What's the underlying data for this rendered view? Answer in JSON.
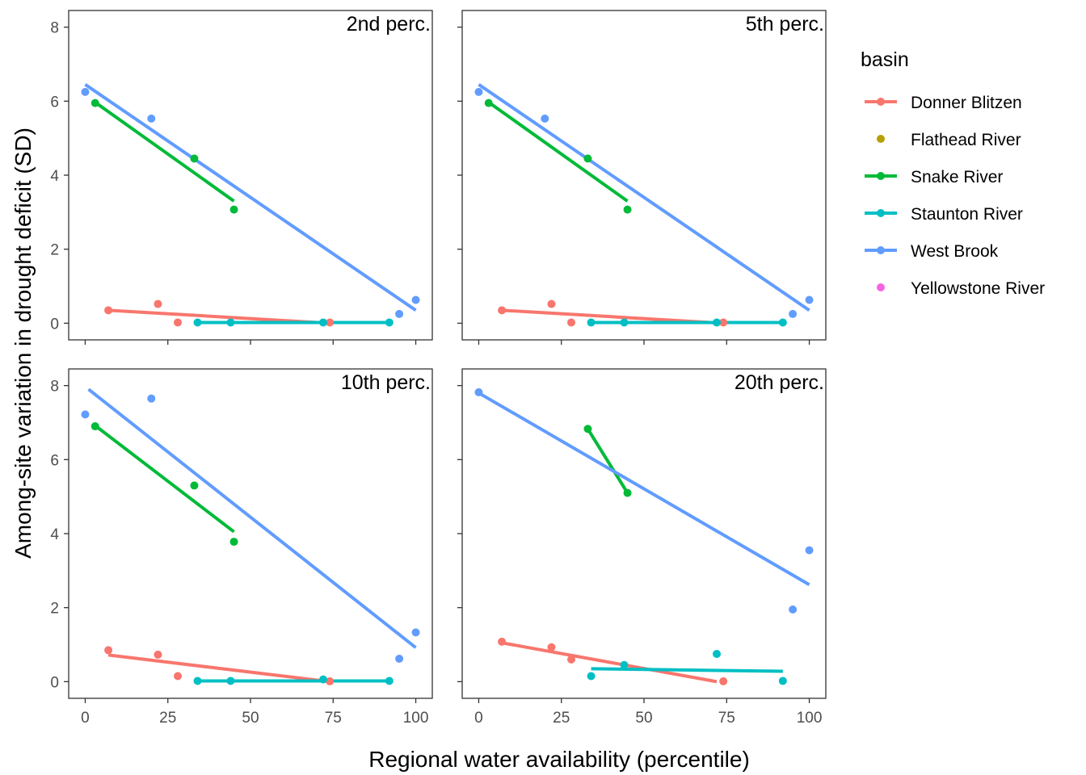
{
  "chart_data": {
    "type": "scatter",
    "xlabel": "Regional water availability (percentile)",
    "ylabel": "Among-site variation in drought deficit (SD)",
    "xlim": [
      -5,
      105
    ],
    "ylim": [
      -0.45,
      8.45
    ],
    "x_ticks": [
      0,
      25,
      50,
      75,
      100
    ],
    "y_ticks": [
      0,
      2,
      4,
      6,
      8
    ],
    "grid": false,
    "legend": {
      "title": "basin",
      "position": "right",
      "entries": [
        {
          "name": "Donner Blitzen",
          "color": "#F8766D",
          "line": true
        },
        {
          "name": "Flathead River",
          "color": "#B79F00",
          "line": false
        },
        {
          "name": "Snake River",
          "color": "#00BA38",
          "line": true
        },
        {
          "name": "Staunton River",
          "color": "#00BFC4",
          "line": true
        },
        {
          "name": "West Brook",
          "color": "#619CFF",
          "line": true
        },
        {
          "name": "Yellowstone River",
          "color": "#F564E3",
          "line": false
        }
      ]
    },
    "panels": [
      {
        "label": "2nd perc.",
        "series": [
          {
            "name": "Donner Blitzen",
            "points": [
              [
                7,
                0.35
              ],
              [
                22,
                0.52
              ],
              [
                28,
                0.02
              ],
              [
                74,
                0.02
              ]
            ],
            "fit": [
              [
                7,
                0.35
              ],
              [
                74,
                0.0
              ]
            ]
          },
          {
            "name": "Snake River",
            "points": [
              [
                3,
                5.95
              ],
              [
                33,
                4.45
              ],
              [
                45,
                3.07
              ]
            ],
            "fit": [
              [
                3,
                5.97
              ],
              [
                45,
                3.3
              ]
            ]
          },
          {
            "name": "Staunton River",
            "points": [
              [
                34,
                0.02
              ],
              [
                44,
                0.02
              ],
              [
                72,
                0.02
              ],
              [
                92,
                0.02
              ]
            ],
            "fit": [
              [
                34,
                0.02
              ],
              [
                92,
                0.02
              ]
            ]
          },
          {
            "name": "West Brook",
            "points": [
              [
                0,
                6.25
              ],
              [
                20,
                5.53
              ],
              [
                95,
                0.25
              ],
              [
                100,
                0.63
              ]
            ],
            "fit": [
              [
                0,
                6.45
              ],
              [
                100,
                0.35
              ]
            ]
          }
        ]
      },
      {
        "label": "5th perc.",
        "series": [
          {
            "name": "Donner Blitzen",
            "points": [
              [
                7,
                0.35
              ],
              [
                22,
                0.52
              ],
              [
                28,
                0.02
              ],
              [
                74,
                0.02
              ]
            ],
            "fit": [
              [
                7,
                0.35
              ],
              [
                74,
                0.0
              ]
            ]
          },
          {
            "name": "Snake River",
            "points": [
              [
                3,
                5.95
              ],
              [
                33,
                4.45
              ],
              [
                45,
                3.07
              ]
            ],
            "fit": [
              [
                3,
                5.97
              ],
              [
                45,
                3.3
              ]
            ]
          },
          {
            "name": "Staunton River",
            "points": [
              [
                34,
                0.02
              ],
              [
                44,
                0.02
              ],
              [
                72,
                0.02
              ],
              [
                92,
                0.02
              ]
            ],
            "fit": [
              [
                34,
                0.02
              ],
              [
                92,
                0.02
              ]
            ]
          },
          {
            "name": "West Brook",
            "points": [
              [
                0,
                6.25
              ],
              [
                20,
                5.53
              ],
              [
                95,
                0.25
              ],
              [
                100,
                0.63
              ]
            ],
            "fit": [
              [
                0,
                6.45
              ],
              [
                100,
                0.35
              ]
            ]
          }
        ]
      },
      {
        "label": "10th perc.",
        "series": [
          {
            "name": "Donner Blitzen",
            "points": [
              [
                7,
                0.85
              ],
              [
                22,
                0.73
              ],
              [
                28,
                0.15
              ],
              [
                74,
                0.01
              ]
            ],
            "fit": [
              [
                7,
                0.72
              ],
              [
                74,
                0.0
              ]
            ]
          },
          {
            "name": "Snake River",
            "points": [
              [
                3,
                6.9
              ],
              [
                33,
                5.3
              ],
              [
                45,
                3.78
              ]
            ],
            "fit": [
              [
                3,
                6.92
              ],
              [
                45,
                4.05
              ]
            ]
          },
          {
            "name": "Staunton River",
            "points": [
              [
                34,
                0.02
              ],
              [
                44,
                0.02
              ],
              [
                72,
                0.06
              ],
              [
                92,
                0.02
              ]
            ],
            "fit": [
              [
                34,
                0.02
              ],
              [
                92,
                0.02
              ]
            ]
          },
          {
            "name": "West Brook",
            "points": [
              [
                0,
                7.22
              ],
              [
                20,
                7.65
              ],
              [
                95,
                0.62
              ],
              [
                100,
                1.33
              ]
            ],
            "fit": [
              [
                1,
                7.9
              ],
              [
                100,
                0.92
              ]
            ]
          }
        ]
      },
      {
        "label": "20th perc.",
        "series": [
          {
            "name": "Donner Blitzen",
            "points": [
              [
                7,
                1.08
              ],
              [
                22,
                0.93
              ],
              [
                28,
                0.6
              ],
              [
                74,
                0.01
              ]
            ],
            "fit": [
              [
                7,
                1.05
              ],
              [
                72,
                0.0
              ]
            ]
          },
          {
            "name": "Snake River",
            "points": [
              [
                33,
                6.83
              ],
              [
                45,
                5.1
              ]
            ],
            "fit": [
              [
                33,
                6.83
              ],
              [
                45,
                5.1
              ]
            ]
          },
          {
            "name": "Staunton River",
            "points": [
              [
                34,
                0.15
              ],
              [
                44,
                0.45
              ],
              [
                72,
                0.75
              ],
              [
                92,
                0.02
              ]
            ],
            "fit": [
              [
                34,
                0.35
              ],
              [
                92,
                0.28
              ]
            ]
          },
          {
            "name": "West Brook",
            "points": [
              [
                0,
                7.82
              ],
              [
                95,
                1.95
              ],
              [
                100,
                3.55
              ]
            ],
            "fit": [
              [
                0,
                7.8
              ],
              [
                100,
                2.62
              ]
            ]
          }
        ]
      }
    ]
  }
}
